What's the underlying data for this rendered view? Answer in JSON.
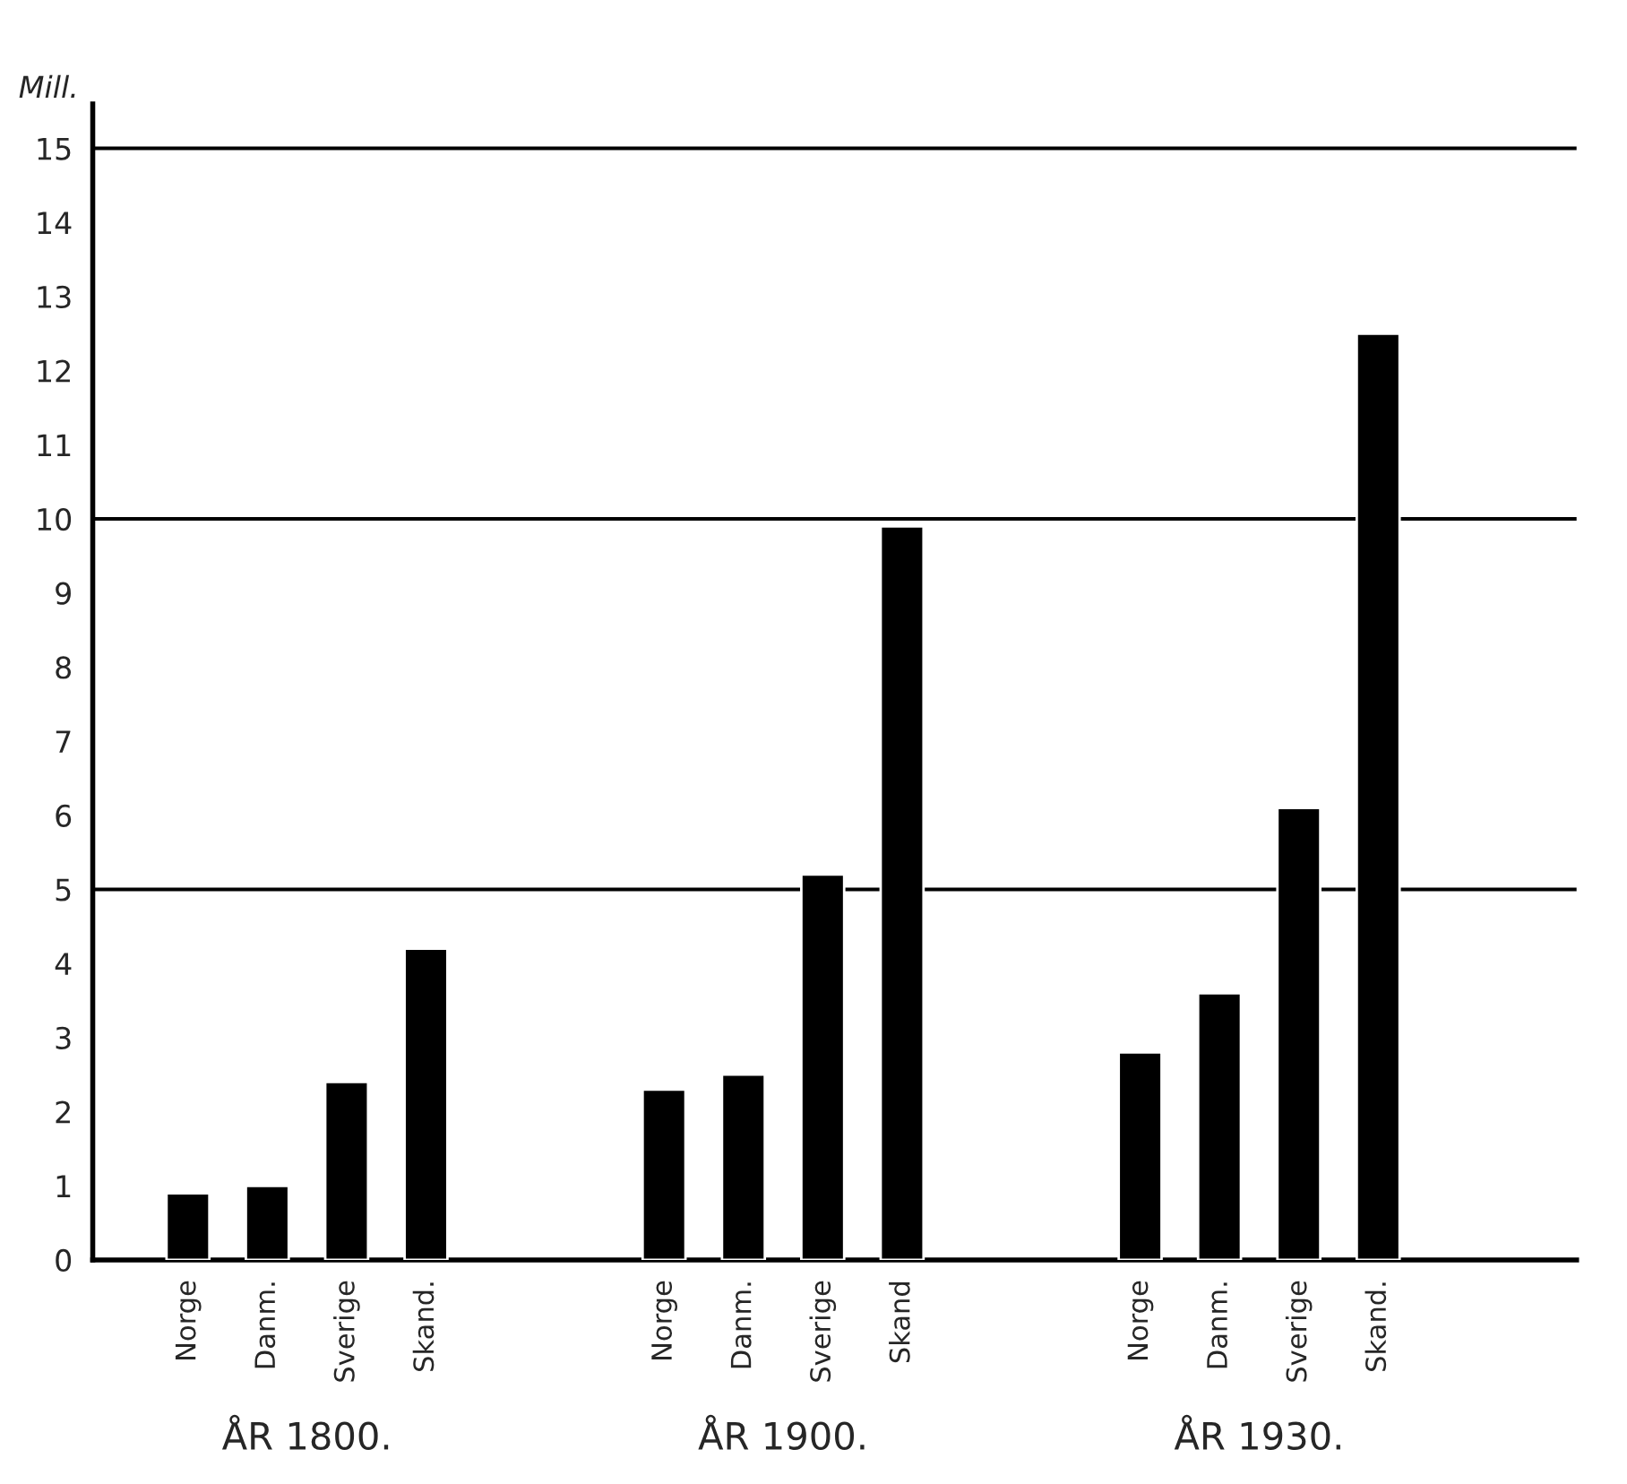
{
  "chart_data": {
    "type": "bar",
    "ylabel": "Mill.",
    "categories": [
      "Norge",
      "Danm.",
      "Sverige",
      "Skand.",
      null,
      null,
      "Norge",
      "Danm.",
      "Sverige",
      "Skand",
      null,
      null,
      "Norge",
      "Danm.",
      "Sverige",
      "Skand."
    ],
    "values": [
      0.9,
      1.0,
      2.4,
      4.2,
      null,
      null,
      2.3,
      2.5,
      5.2,
      9.9,
      null,
      null,
      2.8,
      3.6,
      6.1,
      12.5
    ],
    "color": "#000000",
    "ylim": [
      0,
      15.6
    ],
    "yticks": [
      0,
      1,
      2,
      3,
      4,
      5,
      6,
      7,
      8,
      9,
      10,
      11,
      12,
      13,
      14,
      15
    ],
    "ref_lines": [
      {
        "axis": "y",
        "value": 5,
        "color": "#000000"
      },
      {
        "axis": "y",
        "value": 10,
        "color": "#000000"
      },
      {
        "axis": "y",
        "value": 15,
        "color": "#000000"
      }
    ],
    "annotations": [
      "ÅR 1800.",
      "ÅR 1900.",
      "ÅR 1930."
    ],
    "grid": false,
    "legend": false
  }
}
